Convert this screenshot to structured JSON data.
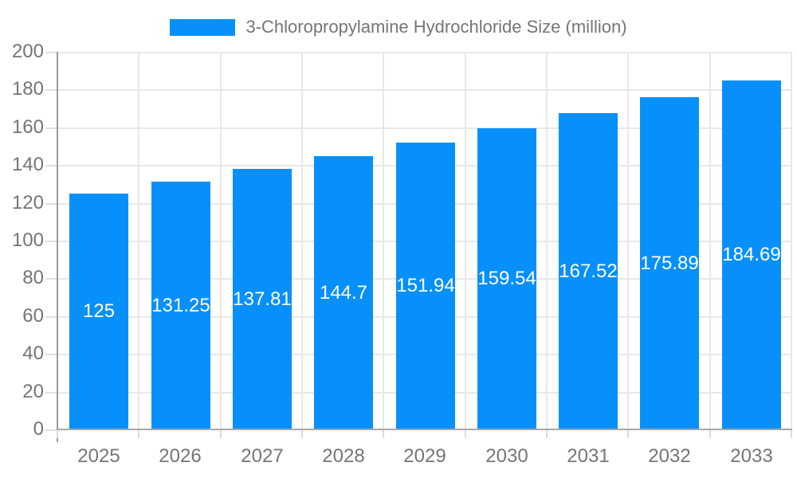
{
  "chart_data": {
    "type": "bar",
    "title": "3-Chloropropylamine Hydrochloride Size (million)",
    "categories": [
      "2025",
      "2026",
      "2027",
      "2028",
      "2029",
      "2030",
      "2031",
      "2032",
      "2033"
    ],
    "values": [
      125,
      131.25,
      137.81,
      144.7,
      151.94,
      159.54,
      167.52,
      175.89,
      184.69
    ],
    "xlabel": "",
    "ylabel": "",
    "ylim": [
      0,
      200
    ],
    "yticks": [
      0,
      20,
      40,
      60,
      80,
      100,
      120,
      140,
      160,
      180,
      200
    ],
    "grid": true,
    "legend_position": "top-center",
    "bar_color": "#0890fa",
    "bar_label_color": "#ffffff",
    "axis_text_color": "#757575",
    "axis_line_color": "#9a9a9a",
    "grid_color": "#e8e8e8"
  }
}
